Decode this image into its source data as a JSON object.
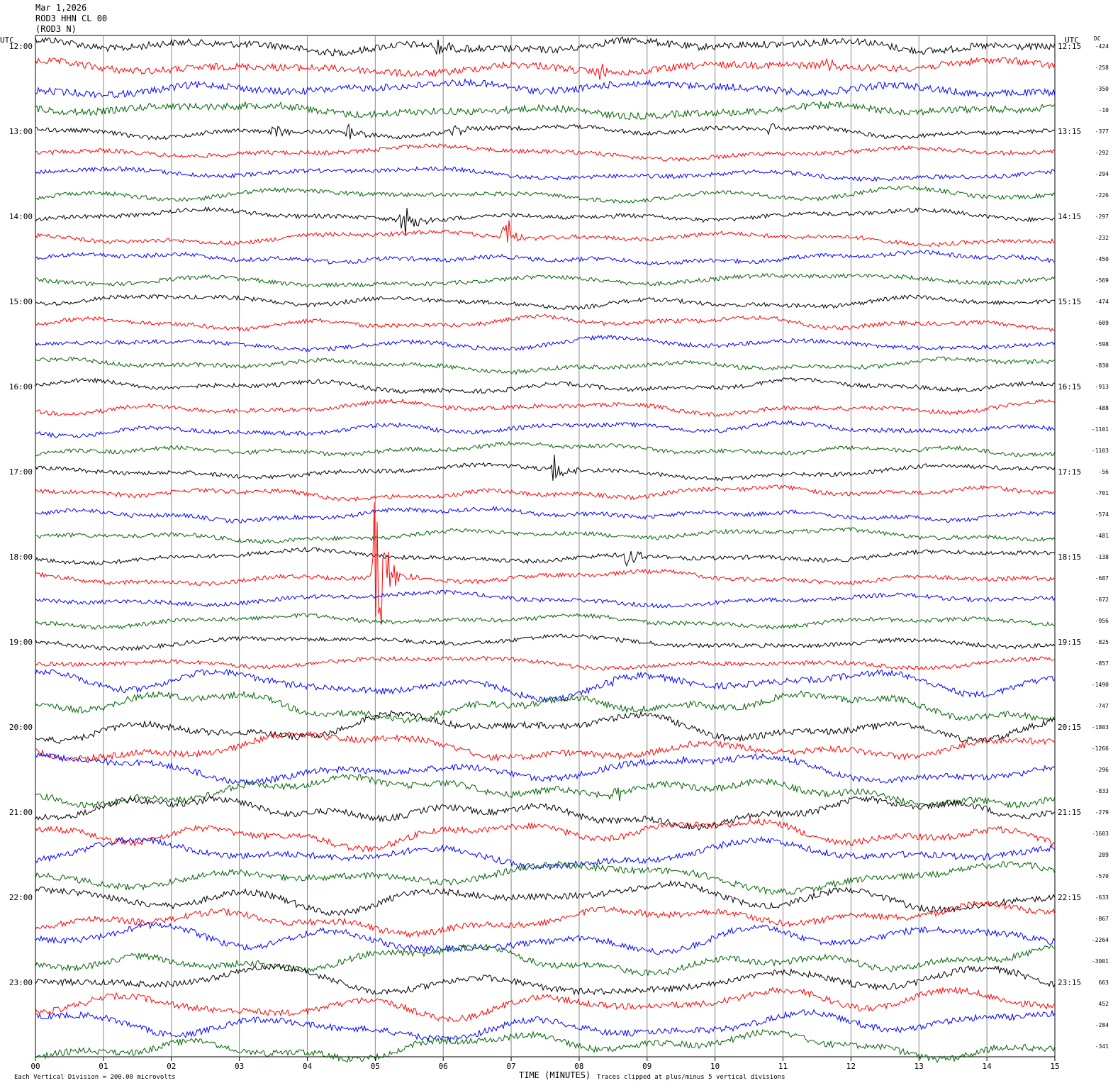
{
  "header": {
    "date": "Mar 1,2026",
    "channel": "ROD3 HHN CL 00",
    "station": "(ROD3 N)"
  },
  "left_utc_label": "UTC",
  "right_utc_label": "UTC",
  "dc_label": "DC",
  "footer": {
    "scale_note": "Each Vertical Division =  200.00 microvolts",
    "xlabel": "TIME (MINUTES)",
    "clip_note": "Traces clipped at plus/minus 5 vertical divisions"
  },
  "colors": {
    "cycle": [
      "#000000",
      "#ff0000",
      "#0000ff",
      "#006400"
    ],
    "grid": "#888888"
  },
  "chart_data": {
    "type": "line",
    "x_range_minutes": [
      0,
      15
    ],
    "x_ticks": [
      "00",
      "01",
      "02",
      "03",
      "04",
      "05",
      "06",
      "07",
      "08",
      "09",
      "10",
      "11",
      "12",
      "13",
      "14",
      "15"
    ],
    "left_hour_labels": [
      "12:00",
      "13:00",
      "14:00",
      "15:00",
      "16:00",
      "17:00",
      "18:00",
      "19:00",
      "20:00",
      "21:00",
      "22:00",
      "23:00"
    ],
    "right_hour_labels": [
      "12:15",
      "13:15",
      "14:15",
      "15:15",
      "16:15",
      "17:15",
      "18:15",
      "19:15",
      "20:15",
      "21:15",
      "22:15",
      "23:15"
    ],
    "dc_offsets": [
      "-424",
      "-258",
      "-350",
      "-10",
      "-377",
      "-292",
      "-294",
      "-226",
      "-297",
      "-232",
      "-450",
      "-569",
      "-474",
      "-609",
      "-598",
      "-830",
      "-913",
      "-488",
      "-1101",
      "-1103",
      "-56",
      "-701",
      "-574",
      "-481",
      "-138",
      "-687",
      "-672",
      "-956",
      "-825",
      "-857",
      "-1490",
      "-747",
      "-1803",
      "-1266",
      "-296",
      "-833",
      "-279",
      "-1603",
      "289",
      "-570",
      "-633",
      "-867",
      "-2264",
      "-3001",
      "663",
      "452",
      "-284",
      "-341"
    ],
    "events": [
      {
        "trace": 0,
        "minute": 5.9,
        "amp": 14
      },
      {
        "trace": 1,
        "minute": 8.3,
        "amp": 16
      },
      {
        "trace": 1,
        "minute": 11.6,
        "amp": 18
      },
      {
        "trace": 4,
        "minute": 3.5,
        "amp": 14
      },
      {
        "trace": 4,
        "minute": 4.6,
        "amp": 12
      },
      {
        "trace": 4,
        "minute": 6.15,
        "amp": 10
      },
      {
        "trace": 4,
        "minute": 10.8,
        "amp": 12
      },
      {
        "trace": 8,
        "minute": 5.4,
        "amp": 40
      },
      {
        "trace": 9,
        "minute": 6.9,
        "amp": 36
      },
      {
        "trace": 20,
        "minute": 7.6,
        "amp": 30
      },
      {
        "trace": 24,
        "minute": 8.7,
        "amp": 18
      },
      {
        "trace": 25,
        "minute": 5.0,
        "amp": 140
      },
      {
        "trace": 30,
        "minute": 8.5,
        "amp": 6
      },
      {
        "trace": 34,
        "minute": 9.5,
        "amp": 8
      },
      {
        "trace": 35,
        "minute": 8.5,
        "amp": 16
      }
    ]
  }
}
